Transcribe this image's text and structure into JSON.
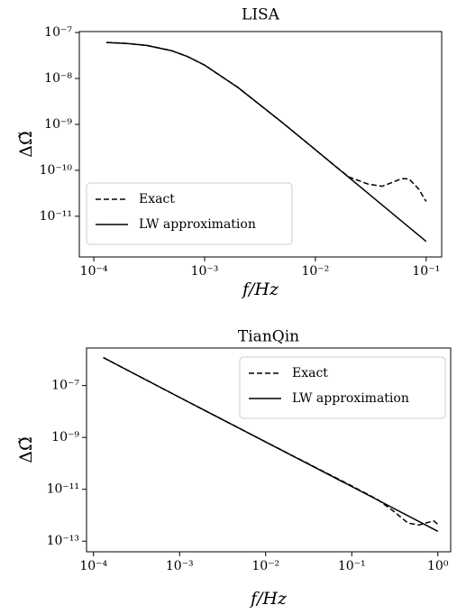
{
  "chart_data": [
    {
      "type": "line",
      "title": "LISA",
      "xlabel": "f/Hz",
      "ylabel": "ΔΩ̃",
      "xscale": "log",
      "yscale": "log",
      "legend": "lower left",
      "xlim": [
        7.4e-05,
        0.138
      ],
      "ylim": [
        1.3e-12,
        1.05e-07
      ],
      "xticks": [
        {
          "value": 0.0001,
          "label": "10⁻⁴"
        },
        {
          "value": 0.001,
          "label": "10⁻³"
        },
        {
          "value": 0.01,
          "label": "10⁻²"
        },
        {
          "value": 0.1,
          "label": "10⁻¹"
        }
      ],
      "yticks": [
        {
          "value": 1e-11,
          "label": "10⁻¹¹"
        },
        {
          "value": 1e-10,
          "label": "10⁻¹⁰"
        },
        {
          "value": 1e-09,
          "label": "10⁻⁹"
        },
        {
          "value": 1e-08,
          "label": "10⁻⁸"
        },
        {
          "value": 1e-07,
          "label": "10⁻⁷"
        }
      ],
      "series": [
        {
          "name": "Exact",
          "color": "#000000",
          "dash": "dashed",
          "x": [
            0.00013,
            0.0002,
            0.0003,
            0.0005,
            0.0007,
            0.001,
            0.002,
            0.005,
            0.01,
            0.015,
            0.02,
            0.03,
            0.04,
            0.05,
            0.06,
            0.07,
            0.085,
            0.1
          ],
          "values": [
            6.07e-08,
            5.78e-08,
            5.25e-08,
            4.05e-08,
            3.01e-08,
            1.95e-08,
            6.36e-09,
            1.11e-09,
            2.81e-10,
            1.25e-10,
            7.2e-11,
            5e-11,
            4.5e-11,
            5.5e-11,
            6.6e-11,
            6.5e-11,
            4e-11,
            2.1e-11
          ]
        },
        {
          "name": "LW approximation",
          "color": "#000000",
          "dash": "solid",
          "x": [
            0.00013,
            0.0002,
            0.0003,
            0.0005,
            0.0007,
            0.001,
            0.002,
            0.005,
            0.01,
            0.02,
            0.03,
            0.05,
            0.07,
            0.1
          ],
          "values": [
            6.07e-08,
            5.78e-08,
            5.25e-08,
            4.05e-08,
            3.01e-08,
            1.95e-08,
            6.36e-09,
            1.11e-09,
            2.81e-10,
            7.06e-11,
            3.14e-11,
            1.13e-11,
            5.77e-12,
            2.83e-12
          ]
        }
      ]
    },
    {
      "type": "line",
      "title": "TianQin",
      "xlabel": "f/Hz",
      "ylabel": "ΔΩ̃",
      "xscale": "log",
      "yscale": "log",
      "legend": "upper right",
      "xlim": [
        8.3e-05,
        1.41
      ],
      "ylim": [
        3.9e-14,
        2.8e-06
      ],
      "xticks": [
        {
          "value": 0.0001,
          "label": "10⁻⁴"
        },
        {
          "value": 0.001,
          "label": "10⁻³"
        },
        {
          "value": 0.01,
          "label": "10⁻²"
        },
        {
          "value": 0.1,
          "label": "10⁻¹"
        },
        {
          "value": 1,
          "label": "10⁰"
        }
      ],
      "yticks": [
        {
          "value": 1e-13,
          "label": "10⁻¹³"
        },
        {
          "value": 1e-11,
          "label": "10⁻¹¹"
        },
        {
          "value": 1e-09,
          "label": "10⁻⁹"
        },
        {
          "value": 1e-07,
          "label": "10⁻⁷"
        }
      ],
      "series": [
        {
          "name": "Exact",
          "color": "#000000",
          "dash": "dashed",
          "x": [
            0.00013,
            0.001,
            0.01,
            0.1,
            0.2,
            0.3,
            0.45,
            0.6,
            0.8,
            0.9,
            1
          ],
          "values": [
            1.2e-06,
            3.5e-08,
            6.7e-10,
            1.35e-11,
            4e-12,
            1.5e-12,
            5e-13,
            4.2e-13,
            5.5e-13,
            6e-13,
            4.5e-13
          ]
        },
        {
          "name": "LW approximation",
          "color": "#000000",
          "dash": "solid",
          "x": [
            0.00013,
            0.001,
            0.01,
            0.1,
            1
          ],
          "values": [
            1.2e-06,
            3.5e-08,
            6.7e-10,
            1.28e-11,
            2.4e-13
          ]
        }
      ]
    }
  ]
}
